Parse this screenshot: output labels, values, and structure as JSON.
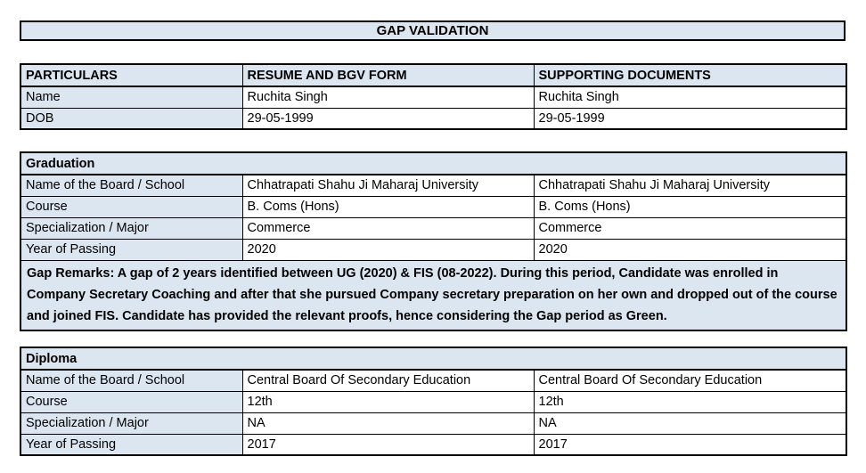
{
  "title": "GAP VALIDATION",
  "colors": {
    "fill": "#dce6f1",
    "border": "#000000",
    "text": "#000000",
    "background": "#ffffff"
  },
  "particulars_table": {
    "headers": [
      "PARTICULARS",
      "RESUME AND BGV FORM",
      "SUPPORTING DOCUMENTS"
    ],
    "rows": [
      {
        "label": "Name",
        "resume": "Ruchita Singh",
        "supporting": "Ruchita Singh"
      },
      {
        "label": "DOB",
        "resume": "29-05-1999",
        "supporting": "29-05-1999"
      }
    ]
  },
  "sections": [
    {
      "name": "Graduation",
      "rows": [
        {
          "label": "Name of the Board / School",
          "resume": "Chhatrapati Shahu Ji Maharaj University",
          "supporting": "Chhatrapati Shahu Ji Maharaj University"
        },
        {
          "label": "Course",
          "resume": "B. Coms (Hons)",
          "supporting": "B. Coms (Hons)"
        },
        {
          "label": "Specialization / Major",
          "resume": "Commerce",
          "supporting": "Commerce"
        },
        {
          "label": "Year of Passing",
          "resume": "2020",
          "supporting": "2020"
        }
      ],
      "remarks": "Gap Remarks: A gap of 2 years identified between UG (2020) & FIS (08-2022). During this period, Candidate was enrolled in Company Secretary Coaching and after that she pursued Company secretary preparation on her own and dropped out of the course and joined FIS. Candidate has provided the relevant proofs, hence considering the Gap period as Green."
    },
    {
      "name": "Diploma",
      "rows": [
        {
          "label": "Name of the Board / School",
          "resume": "Central Board Of Secondary Education",
          "supporting": "Central Board Of Secondary Education"
        },
        {
          "label": "Course",
          "resume": "12th",
          "supporting": "12th"
        },
        {
          "label": "Specialization / Major",
          "resume": "NA",
          "supporting": "NA"
        },
        {
          "label": "Year of Passing",
          "resume": "2017",
          "supporting": "2017"
        }
      ]
    }
  ]
}
